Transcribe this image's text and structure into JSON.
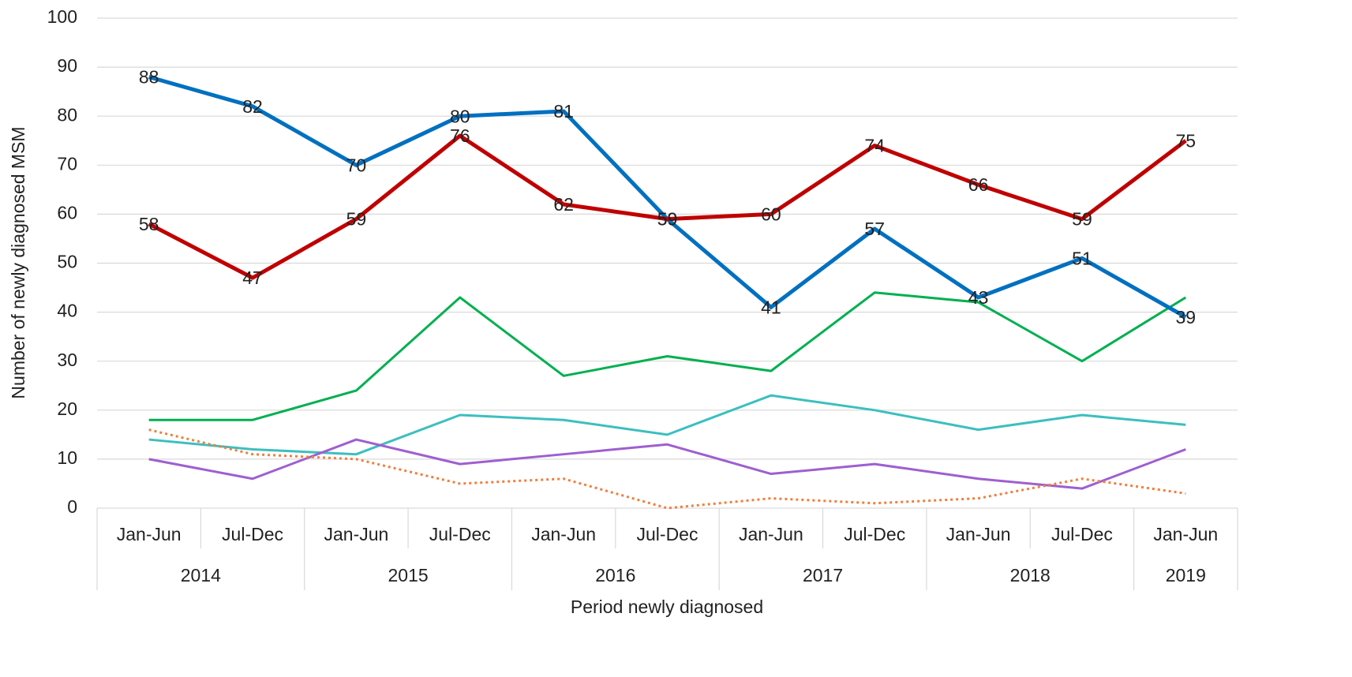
{
  "chart_data": {
    "type": "line",
    "x_label": "Period newly diagnosed",
    "y_label": "Number of newly diagnosed MSM",
    "year_groups": [
      {
        "label": "2014",
        "periods": [
          "Jan-Jun",
          "Jul-Dec"
        ]
      },
      {
        "label": "2015",
        "periods": [
          "Jan-Jun",
          "Jul-Dec"
        ]
      },
      {
        "label": "2016",
        "periods": [
          "Jan-Jun",
          "Jul-Dec"
        ]
      },
      {
        "label": "2017",
        "periods": [
          "Jan-Jun",
          "Jul-Dec"
        ]
      },
      {
        "label": "2018",
        "periods": [
          "Jan-Jun",
          "Jul-Dec"
        ]
      },
      {
        "label": "2019",
        "periods": [
          "Jan-Jun"
        ]
      }
    ],
    "ylim": [
      0,
      100
    ],
    "yticks": [
      0,
      10,
      20,
      30,
      40,
      50,
      60,
      70,
      80,
      90,
      100
    ],
    "grid": true,
    "series": [
      {
        "color": "#00b050",
        "width": 3,
        "values": [
          18,
          18,
          24,
          43,
          27,
          31,
          28,
          44,
          42,
          30,
          43
        ]
      },
      {
        "color": "#3cbfbf",
        "width": 3,
        "values": [
          14,
          12,
          11,
          19,
          18,
          15,
          23,
          20,
          16,
          19,
          17
        ]
      },
      {
        "color": "#9e5fd0",
        "width": 3,
        "values": [
          10,
          6,
          14,
          9,
          11,
          13,
          7,
          9,
          6,
          4,
          12
        ]
      },
      {
        "color": "#f07f3c",
        "width": 3,
        "dashed": true,
        "values": [
          16,
          11,
          10,
          5,
          6,
          0,
          2,
          1,
          2,
          6,
          3
        ]
      },
      {
        "color": "#0070c0",
        "width": 5,
        "data_labels": true,
        "values": [
          88,
          82,
          70,
          80,
          81,
          59,
          41,
          57,
          43,
          51,
          39
        ]
      },
      {
        "color": "#c00000",
        "width": 5,
        "data_labels": true,
        "values": [
          58,
          47,
          59,
          76,
          62,
          59,
          60,
          74,
          66,
          59,
          75
        ]
      }
    ]
  }
}
